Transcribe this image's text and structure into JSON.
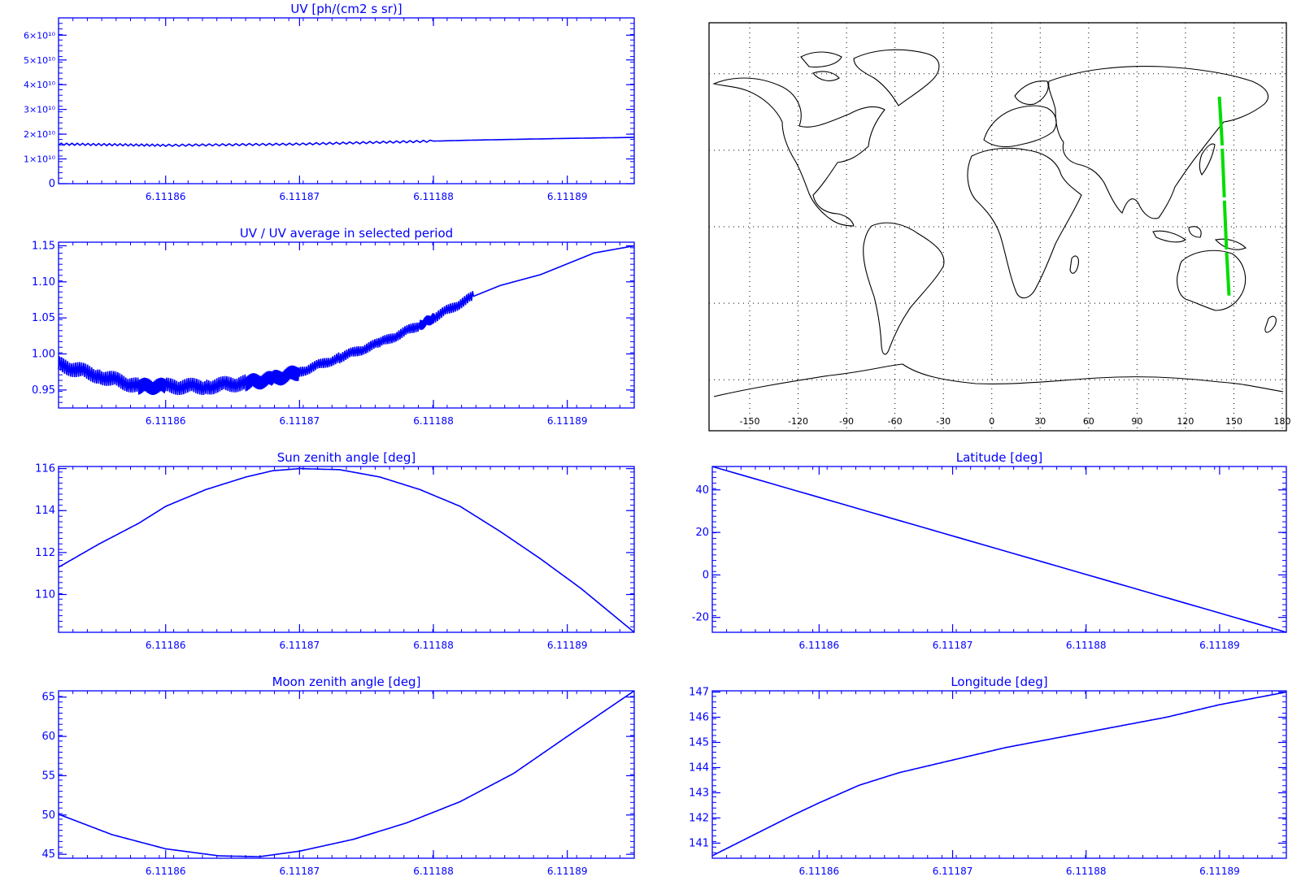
{
  "x_ticks": [
    "6.11186",
    "6.11187",
    "6.11188",
    "6.11189"
  ],
  "chart_data": [
    {
      "id": "uv",
      "type": "line",
      "title": "UV [ph/(cm2 s sr)]",
      "xlabel": "",
      "ylabel": "",
      "y_ticks": [
        "0",
        "1×10¹⁰",
        "2×10¹⁰",
        "3×10¹⁰",
        "4×10¹⁰",
        "5×10¹⁰",
        "6×10¹⁰"
      ],
      "ylim": [
        0,
        67000000000.0
      ],
      "xlim": [
        6.111852,
        6.111895
      ],
      "color": "#0000ff",
      "x": [
        6.111852,
        6.11186,
        6.11187,
        6.11188,
        6.111883,
        6.11189,
        6.111895
      ],
      "y": [
        16000000000.0,
        15500000000.0,
        16000000000.0,
        17200000000.0,
        17600000000.0,
        18300000000.0,
        18700000000.0
      ]
    },
    {
      "id": "uv_ratio",
      "type": "line",
      "title": "UV / UV average in selected period",
      "xlabel": "",
      "ylabel": "",
      "y_ticks": [
        "0.95",
        "1.00",
        "1.05",
        "1.10",
        "1.15"
      ],
      "ylim": [
        0.925,
        1.155
      ],
      "xlim": [
        6.111852,
        6.111895
      ],
      "color": "#0000ff",
      "x": [
        6.111852,
        6.111855,
        6.111858,
        6.11186,
        6.111863,
        6.111866,
        6.111868,
        6.11187,
        6.111873,
        6.111876,
        6.111879,
        6.11188,
        6.111883,
        6.111885,
        6.111888,
        6.11189,
        6.111892,
        6.111895
      ],
      "y": [
        0.985,
        0.97,
        0.955,
        0.955,
        0.955,
        0.96,
        0.965,
        0.975,
        0.995,
        1.015,
        1.04,
        1.05,
        1.08,
        1.095,
        1.11,
        1.125,
        1.14,
        1.15
      ]
    },
    {
      "id": "sun_zenith",
      "type": "line",
      "title": "Sun zenith angle [deg]",
      "xlabel": "",
      "ylabel": "",
      "y_ticks": [
        "110",
        "112",
        "114",
        "116"
      ],
      "ylim": [
        108.2,
        116.1
      ],
      "xlim": [
        6.111852,
        6.111895
      ],
      "color": "#0000ff",
      "x": [
        6.111852,
        6.111855,
        6.111858,
        6.11186,
        6.111863,
        6.111866,
        6.111868,
        6.11187,
        6.111873,
        6.111876,
        6.111879,
        6.111882,
        6.111885,
        6.111888,
        6.111891,
        6.111895
      ],
      "y": [
        111.3,
        112.4,
        113.4,
        114.2,
        115.0,
        115.6,
        115.9,
        116.0,
        115.95,
        115.6,
        115.0,
        114.2,
        113.0,
        111.7,
        110.3,
        108.2
      ]
    },
    {
      "id": "latitude",
      "type": "line",
      "title": "Latitude [deg]",
      "xlabel": "",
      "ylabel": "",
      "y_ticks": [
        "-20",
        "0",
        "20",
        "40"
      ],
      "ylim": [
        -27,
        51
      ],
      "xlim": [
        6.111852,
        6.111895
      ],
      "color": "#0000ff",
      "x": [
        6.111852,
        6.111895
      ],
      "y": [
        51,
        -27
      ]
    },
    {
      "id": "moon_zenith",
      "type": "line",
      "title": "Moon zenith angle [deg]",
      "xlabel": "",
      "ylabel": "",
      "y_ticks": [
        "45",
        "50",
        "55",
        "60",
        "65"
      ],
      "ylim": [
        44.5,
        65.8
      ],
      "xlim": [
        6.111852,
        6.111895
      ],
      "color": "#0000ff",
      "x": [
        6.111852,
        6.111856,
        6.11186,
        6.111864,
        6.111867,
        6.11187,
        6.111874,
        6.111878,
        6.111882,
        6.111886,
        6.11189,
        6.111895
      ],
      "y": [
        50.1,
        47.5,
        45.7,
        44.8,
        44.7,
        45.4,
        46.9,
        49.0,
        51.7,
        55.3,
        60.0,
        65.8
      ]
    },
    {
      "id": "longitude",
      "type": "line",
      "title": "Longitude [deg]",
      "xlabel": "",
      "ylabel": "",
      "y_ticks": [
        "141",
        "142",
        "143",
        "144",
        "145",
        "146",
        "147"
      ],
      "ylim": [
        140.4,
        147.05
      ],
      "xlim": [
        6.111852,
        6.111895
      ],
      "color": "#0000ff",
      "x": [
        6.111852,
        6.111855,
        6.111858,
        6.11186,
        6.111863,
        6.111866,
        6.11187,
        6.111874,
        6.111878,
        6.111882,
        6.111886,
        6.11189,
        6.111895
      ],
      "y": [
        140.5,
        141.3,
        142.1,
        142.6,
        143.3,
        143.8,
        144.3,
        144.8,
        145.2,
        145.6,
        146.0,
        146.5,
        147.0
      ]
    }
  ],
  "map": {
    "lon_ticks": [
      "-150",
      "-120",
      "-90",
      "-60",
      "-30",
      "0",
      "30",
      "60",
      "90",
      "120",
      "150",
      "180"
    ],
    "track_color": "#00dd00",
    "track": [
      [
        141,
        51
      ],
      [
        142.5,
        35
      ],
      [
        143.5,
        20
      ],
      [
        144.5,
        5
      ],
      [
        145.5,
        -10
      ],
      [
        147,
        -27
      ]
    ]
  }
}
